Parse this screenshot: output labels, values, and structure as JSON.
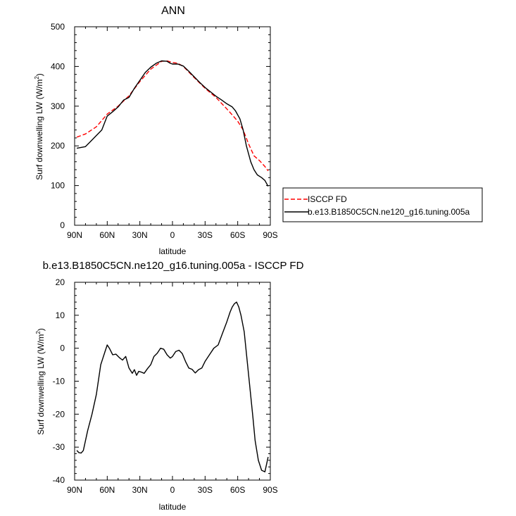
{
  "chart_data": [
    {
      "type": "line",
      "title": "ANN",
      "xlabel": "latitude",
      "ylabel": "Surf downwelling LW (W/m",
      "ylabel_sup": "2",
      "ylabel_tail": ")",
      "xlim": [
        90,
        -90
      ],
      "ylim": [
        0,
        500
      ],
      "x_ticks": [
        90,
        60,
        30,
        0,
        -30,
        -60,
        -90
      ],
      "x_tick_labels": [
        "90N",
        "60N",
        "30N",
        "0",
        "30S",
        "60S",
        "90S"
      ],
      "y_ticks": [
        0,
        100,
        200,
        300,
        400,
        500
      ],
      "y_tick_labels": [
        "0",
        "100",
        "200",
        "300",
        "400",
        "500"
      ],
      "legend_position": "right",
      "series": [
        {
          "name": "ISCCP FD",
          "color": "#ff0000",
          "dash": "dashed",
          "x": [
            88,
            80,
            70,
            60,
            50,
            40,
            30,
            20,
            10,
            5,
            0,
            -5,
            -10,
            -20,
            -30,
            -40,
            -50,
            -55,
            -60,
            -65,
            -70,
            -75,
            -80,
            -85,
            -88
          ],
          "y": [
            222,
            230,
            248,
            280,
            300,
            326,
            362,
            393,
            413,
            414,
            410,
            408,
            400,
            372,
            345,
            322,
            293,
            278,
            262,
            240,
            205,
            175,
            163,
            148,
            137
          ]
        },
        {
          "name": "b.e13.B1850C5CN.ne120_g16.tuning.005a",
          "color": "#000000",
          "dash": "solid",
          "x": [
            88,
            80,
            75,
            70,
            65,
            60,
            55,
            50,
            45,
            40,
            35,
            30,
            25,
            20,
            15,
            10,
            5,
            2,
            0,
            -5,
            -10,
            -15,
            -20,
            -25,
            -30,
            -35,
            -40,
            -45,
            -50,
            -55,
            -58,
            -62,
            -65,
            -68,
            -72,
            -75,
            -78,
            -82,
            -85,
            -88
          ],
          "y": [
            194,
            198,
            212,
            226,
            240,
            275,
            286,
            298,
            315,
            322,
            345,
            365,
            385,
            398,
            408,
            414,
            413,
            408,
            406,
            406,
            401,
            388,
            374,
            360,
            347,
            336,
            325,
            316,
            306,
            298,
            288,
            268,
            240,
            200,
            160,
            140,
            127,
            120,
            113,
            98
          ]
        }
      ]
    },
    {
      "type": "line",
      "title": "b.e13.B1850C5CN.ne120_g16.tuning.005a - ISCCP FD",
      "xlabel": "latitude",
      "ylabel": "Surf downwelling LW (W/m",
      "ylabel_sup": "2",
      "ylabel_tail": ")",
      "xlim": [
        90,
        -90
      ],
      "ylim": [
        -40,
        20
      ],
      "x_ticks": [
        90,
        60,
        30,
        0,
        -30,
        -60,
        -90
      ],
      "x_tick_labels": [
        "90N",
        "60N",
        "30N",
        "0",
        "30S",
        "60S",
        "90S"
      ],
      "y_ticks": [
        -40,
        -30,
        -20,
        -10,
        0,
        10,
        20
      ],
      "y_tick_labels": [
        "-40",
        "-30",
        "-20",
        "-10",
        "0",
        "10",
        "20"
      ],
      "series": [
        {
          "color": "#000000",
          "dash": "solid",
          "x": [
            88,
            86,
            84,
            82,
            78,
            74,
            70,
            66,
            62,
            60,
            58,
            55,
            52,
            49,
            46,
            43,
            40,
            37,
            35,
            33,
            31,
            29,
            26,
            23,
            20,
            17,
            14,
            11,
            8,
            5,
            2,
            0,
            -3,
            -6,
            -9,
            -12,
            -15,
            -18,
            -21,
            -24,
            -27,
            -30,
            -34,
            -38,
            -42,
            -46,
            -50,
            -53,
            -55,
            -57,
            -59,
            -61,
            -63,
            -66,
            -70,
            -74,
            -76,
            -79,
            -82,
            -85,
            -88
          ],
          "y": [
            -31,
            -31.7,
            -31.8,
            -31,
            -25,
            -20,
            -14,
            -5,
            -1,
            1,
            0,
            -2,
            -1.8,
            -2.8,
            -3.6,
            -2.5,
            -6,
            -7.6,
            -6.5,
            -8.2,
            -7,
            -7.2,
            -7.6,
            -6.2,
            -5,
            -2.5,
            -1.5,
            0,
            -0.3,
            -2,
            -3,
            -2.5,
            -1,
            -0.6,
            -1.6,
            -4,
            -6,
            -6.4,
            -7.5,
            -6.5,
            -6,
            -4,
            -2,
            0,
            1,
            4.5,
            8,
            11,
            12.5,
            13.5,
            14,
            12.5,
            10,
            5,
            -8,
            -21,
            -28,
            -34,
            -37,
            -37.5,
            -33
          ]
        }
      ]
    }
  ]
}
